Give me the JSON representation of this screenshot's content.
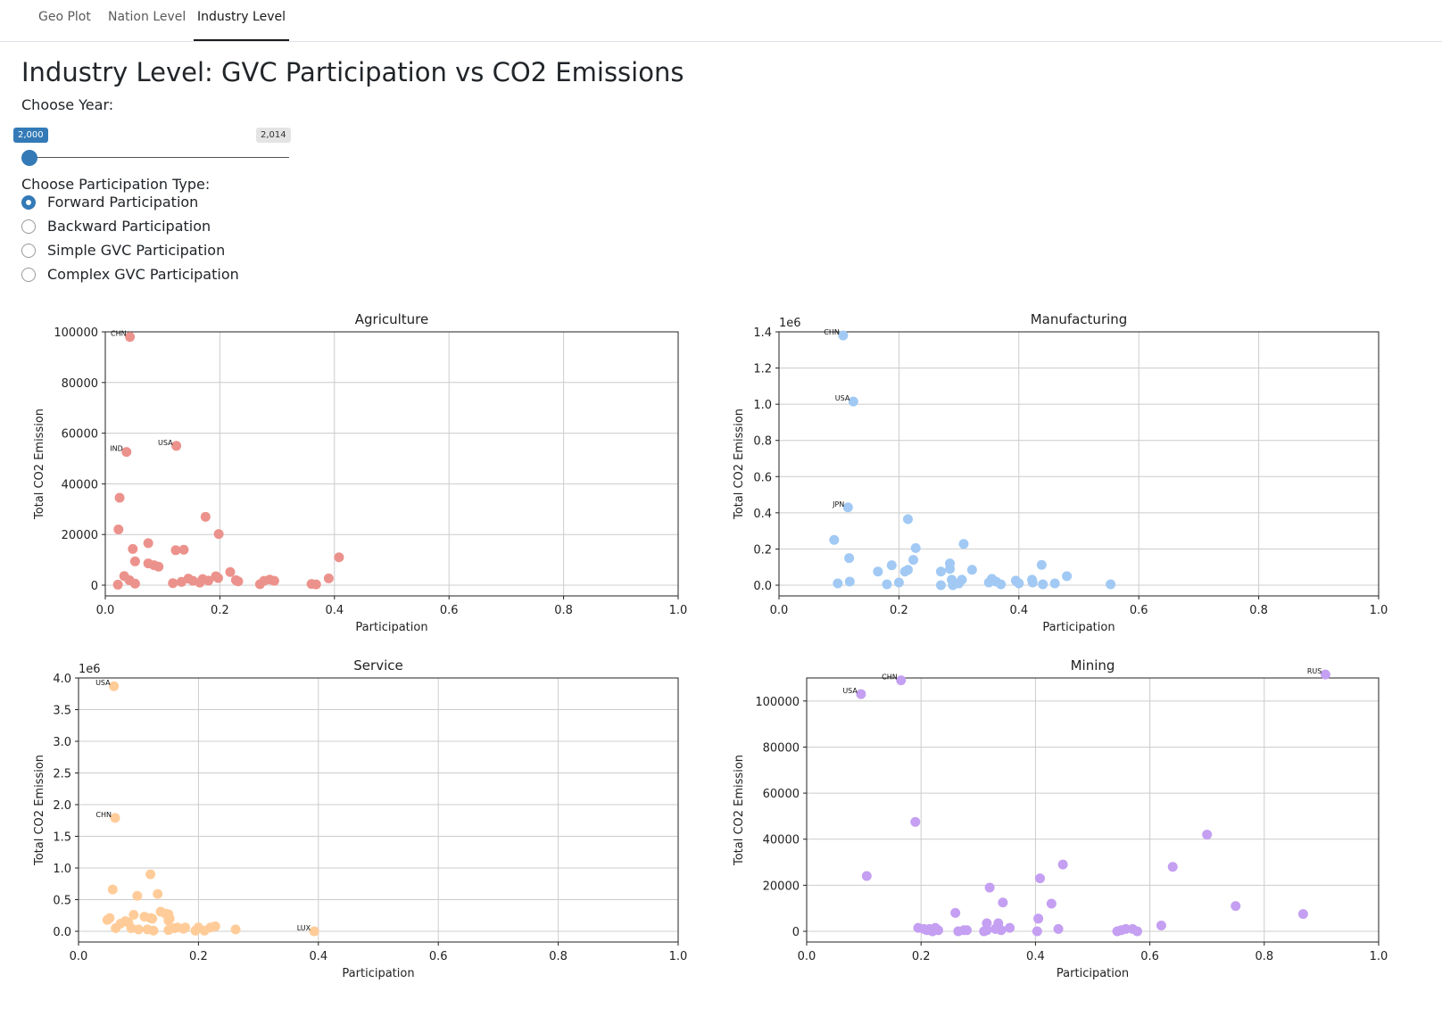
{
  "tabs": [
    {
      "label": "Geo Plot",
      "active": false
    },
    {
      "label": "Nation Level",
      "active": false
    },
    {
      "label": "Industry Level",
      "active": true
    }
  ],
  "page_title": "Industry Level: GVC Participation vs CO2 Emissions",
  "year_control": {
    "label": "Choose Year:",
    "min_label": "2,000",
    "max_label": "2,014",
    "value": 2000,
    "min": 2000,
    "max": 2014
  },
  "participation_control": {
    "label": "Choose Participation Type:",
    "options": [
      {
        "label": "Forward Participation",
        "checked": true
      },
      {
        "label": "Backward Participation",
        "checked": false
      },
      {
        "label": "Simple GVC Participation",
        "checked": false
      },
      {
        "label": "Complex GVC Participation",
        "checked": false
      }
    ]
  },
  "chart_data": [
    {
      "type": "scatter",
      "title": "Agriculture",
      "xlabel": "Participation",
      "ylabel": "Total CO2 Emission",
      "color": "#ec928c",
      "xlim": [
        0,
        1
      ],
      "ylim": [
        0,
        100000
      ],
      "yticks": [
        0,
        20000,
        40000,
        60000,
        80000,
        100000
      ],
      "ytick_labels": [
        "0",
        "20000",
        "40000",
        "60000",
        "80000",
        "100000"
      ],
      "xticks": [
        0,
        0.2,
        0.4,
        0.6,
        0.8,
        1.0
      ],
      "xtick_labels": [
        "0.0",
        "0.2",
        "0.4",
        "0.6",
        "0.8",
        "1.0"
      ],
      "offset_label": "",
      "grid": true,
      "points": [
        [
          0.043,
          98000
        ],
        [
          0.037,
          52600
        ],
        [
          0.124,
          55000
        ],
        [
          0.025,
          34500
        ],
        [
          0.023,
          22000
        ],
        [
          0.175,
          27000
        ],
        [
          0.198,
          20200
        ],
        [
          0.048,
          14300
        ],
        [
          0.075,
          16600
        ],
        [
          0.123,
          13800
        ],
        [
          0.137,
          14000
        ],
        [
          0.052,
          9400
        ],
        [
          0.075,
          8600
        ],
        [
          0.085,
          7900
        ],
        [
          0.093,
          7300
        ],
        [
          0.408,
          11000
        ],
        [
          0.218,
          5200
        ],
        [
          0.033,
          3600
        ],
        [
          0.042,
          2000
        ],
        [
          0.052,
          600
        ],
        [
          0.022,
          200
        ],
        [
          0.118,
          800
        ],
        [
          0.133,
          1300
        ],
        [
          0.145,
          2600
        ],
        [
          0.153,
          1700
        ],
        [
          0.165,
          1000
        ],
        [
          0.17,
          2400
        ],
        [
          0.18,
          1800
        ],
        [
          0.193,
          3500
        ],
        [
          0.197,
          2800
        ],
        [
          0.228,
          2000
        ],
        [
          0.232,
          1500
        ],
        [
          0.27,
          400
        ],
        [
          0.277,
          1700
        ],
        [
          0.287,
          2200
        ],
        [
          0.295,
          1700
        ],
        [
          0.36,
          500
        ],
        [
          0.368,
          300
        ],
        [
          0.39,
          2700
        ]
      ],
      "labels": [
        {
          "text": "CHN",
          "x": 0.043,
          "y": 98000
        },
        {
          "text": "IND",
          "x": 0.037,
          "y": 52600
        },
        {
          "text": "USA",
          "x": 0.124,
          "y": 55000
        }
      ]
    },
    {
      "type": "scatter",
      "title": "Manufacturing",
      "xlabel": "Participation",
      "ylabel": "Total CO2 Emission",
      "color": "#a1c9f4",
      "xlim": [
        0,
        1
      ],
      "ylim": [
        0,
        1400000
      ],
      "yticks": [
        0,
        200000,
        400000,
        600000,
        800000,
        1000000,
        1200000,
        1400000
      ],
      "ytick_labels": [
        "0.0",
        "0.2",
        "0.4",
        "0.6",
        "0.8",
        "1.0",
        "1.2",
        "1.4"
      ],
      "xticks": [
        0,
        0.2,
        0.4,
        0.6,
        0.8,
        1.0
      ],
      "xtick_labels": [
        "0.0",
        "0.2",
        "0.4",
        "0.6",
        "0.8",
        "1.0"
      ],
      "offset_label": "1e6",
      "grid": true,
      "points": [
        [
          0.107,
          1380000
        ],
        [
          0.124,
          1015000
        ],
        [
          0.115,
          430000
        ],
        [
          0.092,
          250000
        ],
        [
          0.117,
          150000
        ],
        [
          0.098,
          10000
        ],
        [
          0.118,
          20000
        ],
        [
          0.165,
          75000
        ],
        [
          0.188,
          110000
        ],
        [
          0.18,
          5000
        ],
        [
          0.2,
          15000
        ],
        [
          0.21,
          75000
        ],
        [
          0.215,
          85000
        ],
        [
          0.215,
          365000
        ],
        [
          0.224,
          140000
        ],
        [
          0.228,
          205000
        ],
        [
          0.27,
          75000
        ],
        [
          0.27,
          0
        ],
        [
          0.285,
          120000
        ],
        [
          0.285,
          90000
        ],
        [
          0.288,
          30000
        ],
        [
          0.29,
          0
        ],
        [
          0.3,
          10000
        ],
        [
          0.305,
          30000
        ],
        [
          0.308,
          228000
        ],
        [
          0.322,
          85000
        ],
        [
          0.35,
          15000
        ],
        [
          0.355,
          35000
        ],
        [
          0.362,
          20000
        ],
        [
          0.37,
          5000
        ],
        [
          0.395,
          25000
        ],
        [
          0.4,
          10000
        ],
        [
          0.422,
          30000
        ],
        [
          0.423,
          15000
        ],
        [
          0.438,
          112000
        ],
        [
          0.44,
          5000
        ],
        [
          0.46,
          10000
        ],
        [
          0.48,
          50000
        ],
        [
          0.553,
          5000
        ]
      ],
      "labels": [
        {
          "text": "CHN",
          "x": 0.107,
          "y": 1380000
        },
        {
          "text": "USA",
          "x": 0.124,
          "y": 1015000
        },
        {
          "text": "JPN",
          "x": 0.115,
          "y": 430000
        }
      ]
    },
    {
      "type": "scatter",
      "title": "Service",
      "xlabel": "Participation",
      "ylabel": "Total CO2 Emission",
      "color": "#ffcc99",
      "xlim": [
        0,
        1
      ],
      "ylim": [
        0,
        4000000
      ],
      "yticks": [
        0,
        500000,
        1000000,
        1500000,
        2000000,
        2500000,
        3000000,
        3500000,
        4000000
      ],
      "ytick_labels": [
        "0.0",
        "0.5",
        "1.0",
        "1.5",
        "2.0",
        "2.5",
        "3.0",
        "3.5",
        "4.0"
      ],
      "xticks": [
        0,
        0.2,
        0.4,
        0.6,
        0.8,
        1.0
      ],
      "xtick_labels": [
        "0.0",
        "0.2",
        "0.4",
        "0.6",
        "0.8",
        "1.0"
      ],
      "offset_label": "1e6",
      "grid": true,
      "points": [
        [
          0.059,
          3870000
        ],
        [
          0.061,
          1790000
        ],
        [
          0.12,
          900000
        ],
        [
          0.057,
          660000
        ],
        [
          0.098,
          560000
        ],
        [
          0.132,
          590000
        ],
        [
          0.048,
          180000
        ],
        [
          0.052,
          210000
        ],
        [
          0.062,
          50000
        ],
        [
          0.07,
          120000
        ],
        [
          0.078,
          160000
        ],
        [
          0.083,
          140000
        ],
        [
          0.088,
          50000
        ],
        [
          0.092,
          260000
        ],
        [
          0.1,
          30000
        ],
        [
          0.11,
          230000
        ],
        [
          0.115,
          30000
        ],
        [
          0.12,
          210000
        ],
        [
          0.123,
          200000
        ],
        [
          0.125,
          10000
        ],
        [
          0.137,
          310000
        ],
        [
          0.145,
          280000
        ],
        [
          0.15,
          270000
        ],
        [
          0.15,
          170000
        ],
        [
          0.15,
          20000
        ],
        [
          0.152,
          200000
        ],
        [
          0.16,
          50000
        ],
        [
          0.165,
          60000
        ],
        [
          0.175,
          40000
        ],
        [
          0.178,
          60000
        ],
        [
          0.195,
          10000
        ],
        [
          0.2,
          60000
        ],
        [
          0.21,
          10000
        ],
        [
          0.22,
          60000
        ],
        [
          0.228,
          80000
        ],
        [
          0.262,
          30000
        ],
        [
          0.393,
          0
        ]
      ],
      "labels": [
        {
          "text": "USA",
          "x": 0.059,
          "y": 3870000
        },
        {
          "text": "CHN",
          "x": 0.061,
          "y": 1790000
        },
        {
          "text": "LUX",
          "x": 0.393,
          "y": 0
        }
      ]
    },
    {
      "type": "scatter",
      "title": "Mining",
      "xlabel": "Participation",
      "ylabel": "Total CO2 Emission",
      "color": "#c49ff2",
      "xlim": [
        0,
        1
      ],
      "ylim": [
        0,
        110000
      ],
      "yticks": [
        0,
        20000,
        40000,
        60000,
        80000,
        100000
      ],
      "ytick_labels": [
        "0",
        "20000",
        "40000",
        "60000",
        "80000",
        "100000"
      ],
      "xticks": [
        0,
        0.2,
        0.4,
        0.6,
        0.8,
        1.0
      ],
      "xtick_labels": [
        "0.0",
        "0.2",
        "0.4",
        "0.6",
        "0.8",
        "1.0"
      ],
      "offset_label": "",
      "grid": true,
      "points": [
        [
          0.095,
          103000
        ],
        [
          0.165,
          109000
        ],
        [
          0.907,
          111500
        ],
        [
          0.19,
          47500
        ],
        [
          0.105,
          24000
        ],
        [
          0.195,
          1500
        ],
        [
          0.205,
          1000
        ],
        [
          0.21,
          500
        ],
        [
          0.215,
          1000
        ],
        [
          0.22,
          0
        ],
        [
          0.225,
          1500
        ],
        [
          0.23,
          500
        ],
        [
          0.26,
          8000
        ],
        [
          0.265,
          0
        ],
        [
          0.275,
          500
        ],
        [
          0.28,
          500
        ],
        [
          0.31,
          0
        ],
        [
          0.315,
          3500
        ],
        [
          0.315,
          500
        ],
        [
          0.32,
          19000
        ],
        [
          0.33,
          1000
        ],
        [
          0.335,
          3500
        ],
        [
          0.34,
          500
        ],
        [
          0.343,
          12500
        ],
        [
          0.355,
          1500
        ],
        [
          0.403,
          0
        ],
        [
          0.405,
          5500
        ],
        [
          0.408,
          23000
        ],
        [
          0.428,
          12000
        ],
        [
          0.44,
          1000
        ],
        [
          0.448,
          29000
        ],
        [
          0.543,
          0
        ],
        [
          0.55,
          500
        ],
        [
          0.558,
          1000
        ],
        [
          0.57,
          1000
        ],
        [
          0.578,
          0
        ],
        [
          0.62,
          2500
        ],
        [
          0.64,
          28000
        ],
        [
          0.7,
          42000
        ],
        [
          0.75,
          11000
        ],
        [
          0.868,
          7500
        ]
      ],
      "labels": [
        {
          "text": "USA",
          "x": 0.095,
          "y": 103000
        },
        {
          "text": "CHN",
          "x": 0.165,
          "y": 109000
        },
        {
          "text": "RUS",
          "x": 0.907,
          "y": 111500
        }
      ]
    }
  ]
}
